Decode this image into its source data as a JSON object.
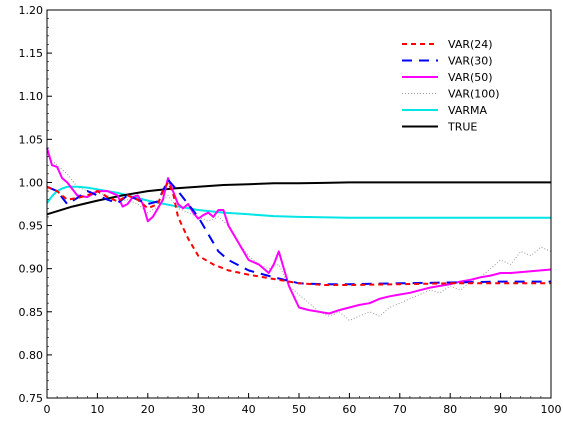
{
  "chart_data": {
    "type": "line",
    "title": "",
    "xlabel": "",
    "ylabel": "",
    "xlim": [
      0,
      100
    ],
    "ylim": [
      0.75,
      1.2
    ],
    "x_ticks": [
      "0",
      "10",
      "20",
      "30",
      "40",
      "50",
      "60",
      "70",
      "80",
      "90",
      "100"
    ],
    "y_ticks": [
      "0.75",
      "0.80",
      "0.85",
      "0.90",
      "0.95",
      "1.00",
      "1.05",
      "1.10",
      "1.15",
      "1.20"
    ],
    "x_tick_values": [
      0,
      10,
      20,
      30,
      40,
      50,
      60,
      70,
      80,
      90,
      100
    ],
    "y_tick_values": [
      0.75,
      0.8,
      0.85,
      0.9,
      0.95,
      1.0,
      1.05,
      1.1,
      1.15,
      1.2
    ],
    "legend_position": "top-right",
    "series": [
      {
        "name": "VAR(24)",
        "color": "#ff0000",
        "style": "dash-short",
        "x": [
          0,
          2,
          4,
          6,
          8,
          10,
          12,
          14,
          16,
          18,
          20,
          22,
          23,
          24,
          25,
          26,
          28,
          30,
          33,
          36,
          40,
          45,
          50,
          55,
          60,
          70,
          80,
          90,
          100
        ],
        "y": [
          0.995,
          0.99,
          0.98,
          0.982,
          0.985,
          0.99,
          0.983,
          0.978,
          0.985,
          0.98,
          0.97,
          0.975,
          0.99,
          1.0,
          0.988,
          0.96,
          0.935,
          0.915,
          0.905,
          0.898,
          0.893,
          0.888,
          0.883,
          0.881,
          0.881,
          0.882,
          0.883,
          0.883,
          0.883
        ]
      },
      {
        "name": "VAR(30)",
        "color": "#0000ff",
        "style": "dash-long",
        "x": [
          0,
          2,
          4,
          6,
          8,
          10,
          12,
          14,
          16,
          18,
          20,
          22,
          24,
          26,
          28,
          30,
          32,
          34,
          36,
          40,
          45,
          50,
          55,
          60,
          70,
          80,
          90,
          100
        ],
        "y": [
          0.995,
          0.99,
          0.975,
          0.982,
          0.99,
          0.985,
          0.98,
          0.976,
          0.985,
          0.98,
          0.975,
          0.978,
          1.003,
          0.99,
          0.975,
          0.96,
          0.94,
          0.92,
          0.91,
          0.898,
          0.89,
          0.883,
          0.882,
          0.882,
          0.883,
          0.884,
          0.885,
          0.885
        ]
      },
      {
        "name": "VAR(50)",
        "color": "#ff00ff",
        "style": "solid",
        "x": [
          0,
          1,
          2,
          3,
          4,
          6,
          8,
          10,
          12,
          14,
          15,
          16,
          17,
          18,
          19,
          20,
          21,
          22,
          23,
          24,
          25,
          26,
          27,
          28,
          29,
          30,
          31,
          32,
          33,
          34,
          35,
          36,
          38,
          40,
          42,
          44,
          45,
          46,
          48,
          50,
          52,
          54,
          56,
          58,
          60,
          62,
          64,
          66,
          68,
          70,
          72,
          74,
          76,
          78,
          80,
          82,
          84,
          86,
          88,
          90,
          92,
          94,
          96,
          98,
          100
        ],
        "y": [
          1.04,
          1.02,
          1.018,
          1.005,
          1.0,
          0.985,
          0.983,
          0.99,
          0.99,
          0.985,
          0.972,
          0.975,
          0.983,
          0.985,
          0.975,
          0.955,
          0.96,
          0.97,
          0.98,
          1.005,
          0.99,
          0.975,
          0.97,
          0.975,
          0.965,
          0.958,
          0.962,
          0.965,
          0.96,
          0.968,
          0.968,
          0.95,
          0.93,
          0.91,
          0.905,
          0.895,
          0.905,
          0.92,
          0.88,
          0.855,
          0.852,
          0.85,
          0.848,
          0.852,
          0.855,
          0.858,
          0.86,
          0.865,
          0.868,
          0.87,
          0.872,
          0.875,
          0.878,
          0.88,
          0.882,
          0.885,
          0.887,
          0.89,
          0.892,
          0.895,
          0.895,
          0.896,
          0.897,
          0.898,
          0.899
        ]
      },
      {
        "name": "VAR(100)",
        "color": "#999999",
        "style": "dotted",
        "x": [
          0,
          2,
          4,
          6,
          8,
          10,
          12,
          14,
          16,
          18,
          20,
          22,
          24,
          26,
          28,
          30,
          32,
          34,
          36,
          38,
          40,
          42,
          44,
          46,
          48,
          50,
          52,
          54,
          56,
          58,
          60,
          62,
          64,
          66,
          68,
          70,
          72,
          74,
          76,
          78,
          80,
          82,
          84,
          86,
          88,
          90,
          92,
          94,
          96,
          98,
          100
        ],
        "y": [
          1.03,
          1.02,
          1.01,
          0.995,
          0.99,
          0.988,
          0.985,
          0.978,
          0.98,
          0.975,
          0.965,
          0.972,
          0.985,
          0.97,
          0.965,
          0.96,
          0.955,
          0.96,
          0.95,
          0.93,
          0.915,
          0.905,
          0.9,
          0.905,
          0.88,
          0.87,
          0.86,
          0.85,
          0.845,
          0.85,
          0.84,
          0.845,
          0.85,
          0.845,
          0.855,
          0.86,
          0.865,
          0.87,
          0.875,
          0.872,
          0.88,
          0.875,
          0.885,
          0.89,
          0.9,
          0.91,
          0.905,
          0.92,
          0.915,
          0.925,
          0.92
        ]
      },
      {
        "name": "VARMA",
        "color": "#00e5e5",
        "style": "solid",
        "x": [
          0,
          1,
          2,
          3,
          4,
          5,
          6,
          8,
          10,
          12,
          14,
          16,
          18,
          20,
          25,
          30,
          35,
          40,
          45,
          50,
          60,
          70,
          80,
          90,
          100
        ],
        "y": [
          0.976,
          0.984,
          0.99,
          0.993,
          0.995,
          0.995,
          0.995,
          0.994,
          0.992,
          0.99,
          0.988,
          0.985,
          0.982,
          0.979,
          0.973,
          0.968,
          0.965,
          0.963,
          0.961,
          0.96,
          0.959,
          0.959,
          0.959,
          0.959,
          0.959
        ]
      },
      {
        "name": "TRUE",
        "color": "#000000",
        "style": "solid",
        "x": [
          0,
          5,
          10,
          15,
          20,
          25,
          30,
          35,
          40,
          45,
          50,
          55,
          60,
          70,
          80,
          90,
          100
        ],
        "y": [
          0.963,
          0.972,
          0.979,
          0.985,
          0.99,
          0.993,
          0.995,
          0.997,
          0.998,
          0.999,
          0.999,
          0.9995,
          1.0,
          1.0,
          1.0,
          1.0,
          1.0
        ]
      }
    ]
  }
}
